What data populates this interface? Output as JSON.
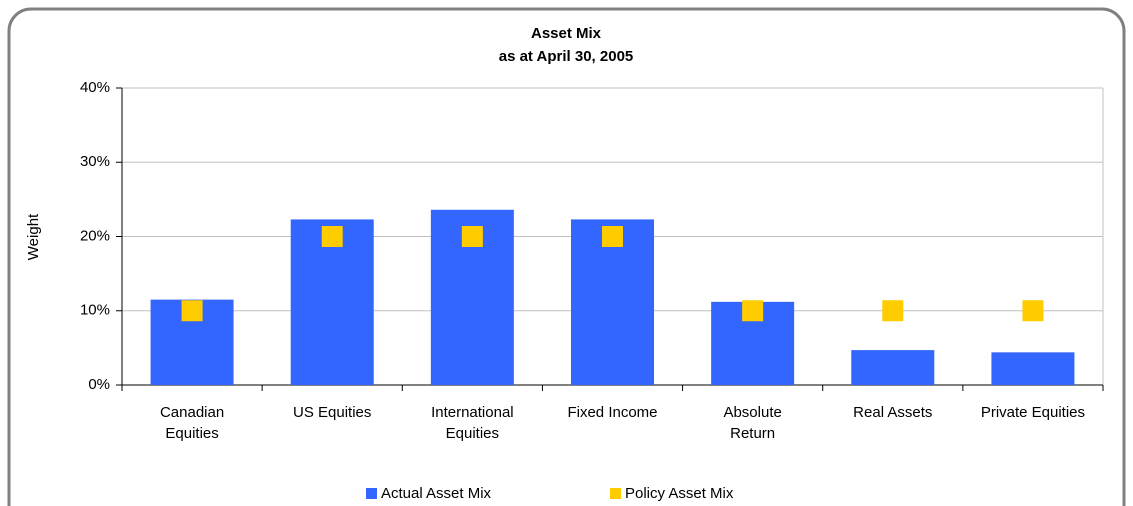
{
  "chart_data": {
    "type": "bar",
    "title": "Asset Mix",
    "subtitle": "as at April 30, 2005",
    "y_label": "Weight",
    "categories": [
      "Canadian\nEquities",
      "US Equities",
      "International\nEquities",
      "Fixed Income",
      "Absolute\nReturn",
      "Real Assets",
      "Private Equities"
    ],
    "series": [
      {
        "name": "Actual Asset Mix",
        "color": "#3366ff",
        "marker": "bar",
        "values": [
          11.5,
          22.3,
          23.6,
          22.3,
          11.2,
          4.7,
          4.4
        ]
      },
      {
        "name": "Policy Asset Mix",
        "color": "#ffcc00",
        "marker": "square",
        "values": [
          10,
          20,
          20,
          20,
          10,
          10,
          10
        ]
      }
    ],
    "ylim": [
      0,
      40
    ],
    "yticks": [
      {
        "value": 0,
        "label": "0%"
      },
      {
        "value": 10,
        "label": "10%"
      },
      {
        "value": 20,
        "label": "20%"
      },
      {
        "value": 30,
        "label": "30%"
      },
      {
        "value": 40,
        "label": "40%"
      }
    ],
    "grid": true,
    "legend": "bottom"
  }
}
